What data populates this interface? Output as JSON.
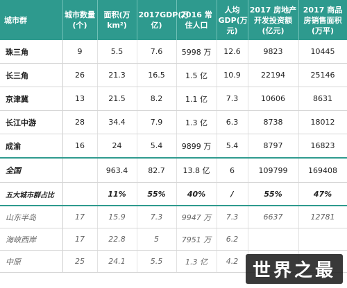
{
  "headers": [
    "城市群",
    "城市数量(个)",
    "面积(万 km²)",
    "2017GDP(万亿)",
    "2016 常住人口",
    "人均GDP(万元)",
    "2017 房地产开发投资额(亿元)",
    "2017 商品房销售面积(万平)"
  ],
  "rows": [
    [
      "珠三角",
      "9",
      "5.5",
      "7.6",
      "5998 万",
      "12.6",
      "9823",
      "10445"
    ],
    [
      "长三角",
      "26",
      "21.3",
      "16.5",
      "1.5 亿",
      "10.9",
      "22194",
      "25146"
    ],
    [
      "京津冀",
      "13",
      "21.5",
      "8.2",
      "1.1 亿",
      "7.3",
      "10606",
      "8631"
    ],
    [
      "长江中游",
      "28",
      "34.4",
      "7.9",
      "1.3 亿",
      "6.3",
      "8738",
      "18012"
    ],
    [
      "成渝",
      "16",
      "24",
      "5.4",
      "9899 万",
      "5.4",
      "8797",
      "16823"
    ]
  ],
  "total": [
    "全国",
    "",
    "963.4",
    "82.7",
    "13.8 亿",
    "6",
    "109799",
    "169408"
  ],
  "ratio": [
    "五大城市群占比",
    "",
    "11%",
    "55%",
    "40%",
    "/",
    "55%",
    "47%"
  ],
  "minor_rows": [
    [
      "山东半岛",
      "17",
      "15.9",
      "7.3",
      "9947 万",
      "7.3",
      "6637",
      "12781"
    ],
    [
      "海峡西岸",
      "17",
      "22.8",
      "5",
      "7951 万",
      "6.2",
      "",
      ""
    ],
    [
      "中原",
      "25",
      "24.1",
      "5.5",
      "1.3 亿",
      "4.2",
      "",
      ""
    ]
  ],
  "watermark": "世界之最"
}
